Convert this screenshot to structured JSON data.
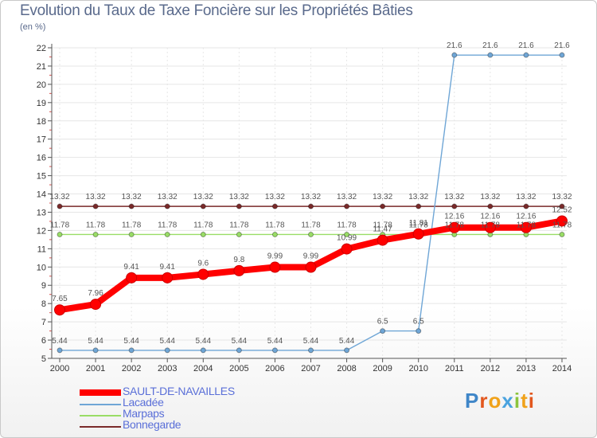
{
  "title": "Evolution du Taux de Taxe Foncière sur les Propriétés Bâties",
  "unit_label": "(en %)",
  "logo_text": "Proxiti",
  "colors": {
    "sault": "#ff0000",
    "lacadee": "#6fa6d6",
    "marpaps": "#99dd66",
    "bonnegarde": "#7a2a2a",
    "grid": "#e6e6e6",
    "legend_text": "#5a6fd8"
  },
  "chart_data": {
    "type": "line",
    "title": "Evolution du Taux de Taxe Foncière sur les Propriétés Bâties",
    "ylabel": "(en %)",
    "xlabel": "",
    "ylim": [
      5,
      22
    ],
    "yticks": [
      5,
      6,
      7,
      8,
      9,
      10,
      11,
      12,
      13,
      14,
      15,
      16,
      17,
      18,
      19,
      20,
      21,
      22
    ],
    "x": [
      "2000",
      "2001",
      "2002",
      "2003",
      "2004",
      "2005",
      "2006",
      "2007",
      "2008",
      "2009",
      "2010",
      "2011",
      "2012",
      "2013",
      "2014"
    ],
    "series": [
      {
        "name": "Bonnegarde",
        "key": "bonnegarde",
        "values": [
          13.32,
          13.32,
          13.32,
          13.32,
          13.32,
          13.32,
          13.32,
          13.32,
          13.32,
          13.32,
          13.32,
          13.32,
          13.32,
          13.32,
          13.32
        ],
        "labels": [
          "13.32",
          "13.32",
          "13.32",
          "13.32",
          "13.32",
          "13.32",
          "13.32",
          "13.32",
          "13.32",
          "13.32",
          "13.32",
          "13.32",
          "13.32",
          "13.32",
          "13.32"
        ]
      },
      {
        "name": "Marpaps",
        "key": "marpaps",
        "values": [
          11.78,
          11.78,
          11.78,
          11.78,
          11.78,
          11.78,
          11.78,
          11.78,
          11.78,
          11.78,
          11.78,
          11.78,
          11.78,
          11.78,
          11.78
        ],
        "labels": [
          "11.78",
          "11.78",
          "11.78",
          "11.78",
          "11.78",
          "11.78",
          "11.78",
          "11.78",
          "11.78",
          "11.78",
          "11.78",
          "11.78",
          "11.78",
          "11.78",
          "11.78"
        ]
      },
      {
        "name": "Lacadée",
        "key": "lacadee",
        "values": [
          5.44,
          5.44,
          5.44,
          5.44,
          5.44,
          5.44,
          5.44,
          5.44,
          5.44,
          6.5,
          6.5,
          21.6,
          21.6,
          21.6,
          21.6
        ],
        "labels": [
          "5.44",
          "5.44",
          "5.44",
          "5.44",
          "5.44",
          "5.44",
          "5.44",
          "5.44",
          "5.44",
          "6.5",
          "6.5",
          "21.6",
          "21.6",
          "21.6",
          "21.6"
        ]
      },
      {
        "name": "SAULT-DE-NAVAILLES",
        "key": "sault",
        "values": [
          7.65,
          7.96,
          9.41,
          9.41,
          9.6,
          9.8,
          9.99,
          9.99,
          10.99,
          11.47,
          11.81,
          12.16,
          12.16,
          12.16,
          12.52
        ],
        "labels": [
          "7.65",
          "7.96",
          "9.41",
          "9.41",
          "9.6",
          "9.8",
          "9.99",
          "9.99",
          "10.99",
          "11.47",
          "11.81",
          "12.16",
          "12.16",
          "12.16",
          "12.52"
        ]
      }
    ],
    "legend": [
      "SAULT-DE-NAVAILLES",
      "Lacadée",
      "Marpaps",
      "Bonnegarde"
    ]
  }
}
